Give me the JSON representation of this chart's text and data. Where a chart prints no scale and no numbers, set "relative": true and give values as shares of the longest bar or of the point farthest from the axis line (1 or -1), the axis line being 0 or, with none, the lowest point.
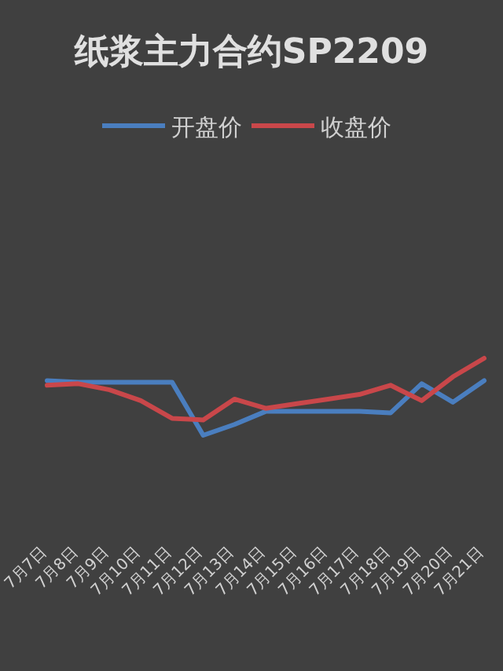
{
  "chart_data": {
    "type": "line",
    "title": "纸浆主力合约SP2209",
    "relative": true,
    "legend": "top",
    "categories": [
      "7月7日",
      "7月8日",
      "7月9日",
      "7月10日",
      "7月11日",
      "7月12日",
      "7月13日",
      "7月14日",
      "7月15日",
      "7月16日",
      "7月17日",
      "7月18日",
      "7月19日",
      "7月20日",
      "7月21日"
    ],
    "series": [
      {
        "name": "开盘价",
        "color": "#4a7ebf",
        "values": [
          0.71,
          0.69,
          0.69,
          0.69,
          0.69,
          0,
          0.14,
          0.31,
          0.31,
          0.31,
          0.31,
          0.29,
          0.67,
          0.43,
          0.71
        ]
      },
      {
        "name": "收盘价",
        "color": "#c9474a",
        "values": [
          0.65,
          0.67,
          0.59,
          0.45,
          0.22,
          0.2,
          0.47,
          0.35,
          0.41,
          0.47,
          0.53,
          0.65,
          0.45,
          0.76,
          1
        ]
      }
    ]
  }
}
